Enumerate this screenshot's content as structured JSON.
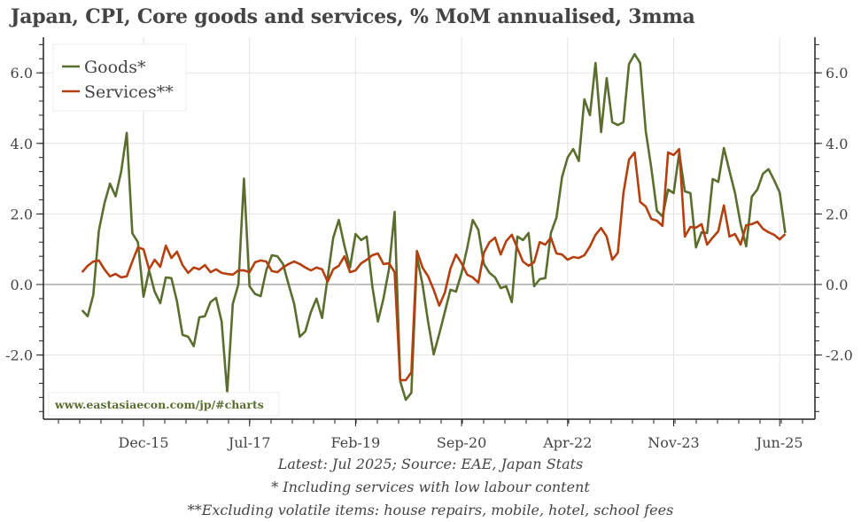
{
  "chart_data": {
    "type": "line",
    "title": "Japan, CPI, Core goods and services, % MoM annualised, 3mma",
    "xlabel": "",
    "ylabel": "",
    "ylim": [
      -3.9,
      7.0
    ],
    "yticks": [
      "-2.0",
      "0.0",
      "2.0",
      "4.0",
      "6.0"
    ],
    "ytick_values": [
      -2,
      0,
      2,
      4,
      6
    ],
    "xticks": [
      "Dec-15",
      "Jul-17",
      "Feb-19",
      "Sep-20",
      "Apr-22",
      "Nov-23",
      "Jun-25"
    ],
    "grid": true,
    "legend_position": "top-left",
    "x_start": "Jan-15",
    "x_end": "Jul-25",
    "series": [
      {
        "name": "Goods*",
        "color": "#5a6e2e",
        "values": [
          -0.73,
          -0.9,
          -0.3,
          1.53,
          2.3,
          2.86,
          2.5,
          3.2,
          4.3,
          1.45,
          1.2,
          -0.35,
          0.4,
          -0.2,
          -0.53,
          0.2,
          0.18,
          -0.48,
          -1.43,
          -1.48,
          -1.75,
          -0.93,
          -0.9,
          -0.5,
          -0.38,
          -1.05,
          -3.07,
          -0.55,
          0.0,
          3.0,
          -0.05,
          -0.27,
          -0.33,
          0.4,
          0.83,
          0.8,
          0.58,
          0.0,
          -0.55,
          -1.48,
          -1.33,
          -0.78,
          -0.4,
          -0.95,
          0.2,
          1.33,
          1.83,
          1.1,
          0.48,
          1.43,
          1.26,
          1.36,
          -0.05,
          -1.05,
          -0.4,
          0.45,
          2.06,
          -2.74,
          -3.27,
          -3.07,
          0.78,
          0.0,
          -1.06,
          -1.98,
          -1.4,
          -0.78,
          -0.15,
          -0.2,
          0.33,
          1.03,
          1.83,
          1.55,
          0.58,
          0.33,
          0.2,
          -0.1,
          -0.05,
          -0.5,
          1.36,
          1.26,
          1.46,
          -0.05,
          0.15,
          0.18,
          1.46,
          1.9,
          3.04,
          3.6,
          3.84,
          3.5,
          5.25,
          4.8,
          6.28,
          4.32,
          5.85,
          4.6,
          4.52,
          4.6,
          6.25,
          6.53,
          6.28,
          4.35,
          3.3,
          2.09,
          1.93,
          2.69,
          2.59,
          3.74,
          2.64,
          2.59,
          1.05,
          1.48,
          1.46,
          2.99,
          2.91,
          3.87,
          3.22,
          2.59,
          1.71,
          1.08,
          2.49,
          2.69,
          3.14,
          3.27,
          2.96,
          2.61,
          1.46
        ]
      },
      {
        "name": "Services**",
        "color": "#b5400f",
        "values": [
          0.35,
          0.53,
          0.65,
          0.68,
          0.43,
          0.23,
          0.3,
          0.2,
          0.23,
          0.65,
          1.05,
          1.0,
          0.43,
          0.7,
          0.5,
          1.1,
          0.75,
          0.93,
          0.55,
          0.33,
          0.48,
          0.43,
          0.55,
          0.35,
          0.43,
          0.33,
          0.3,
          0.28,
          0.4,
          0.4,
          0.35,
          0.63,
          0.68,
          0.65,
          0.38,
          0.35,
          0.48,
          0.58,
          0.65,
          0.58,
          0.48,
          0.4,
          0.48,
          0.43,
          0.08,
          0.43,
          0.53,
          0.8,
          0.35,
          0.4,
          0.6,
          0.7,
          0.83,
          0.88,
          0.58,
          0.6,
          0.35,
          -2.71,
          -2.71,
          -2.49,
          0.95,
          0.48,
          0.23,
          -0.15,
          -0.6,
          -0.23,
          0.45,
          0.85,
          0.6,
          0.28,
          0.2,
          0.05,
          0.9,
          1.2,
          1.33,
          0.85,
          1.23,
          1.41,
          1.03,
          0.65,
          0.53,
          0.63,
          1.2,
          1.13,
          1.33,
          0.88,
          0.85,
          0.7,
          0.78,
          0.75,
          0.83,
          1.08,
          1.41,
          1.6,
          1.36,
          0.7,
          0.9,
          2.59,
          3.54,
          3.74,
          2.34,
          2.21,
          1.86,
          1.81,
          1.66,
          3.74,
          3.67,
          3.84,
          1.36,
          1.63,
          1.61,
          1.71,
          1.13,
          1.33,
          1.51,
          2.24,
          1.36,
          1.43,
          1.13,
          1.68,
          1.71,
          1.78,
          1.58,
          1.48,
          1.41,
          1.28,
          1.43
        ]
      }
    ]
  },
  "watermark": "www.eastasiaecon.com/jp/#charts",
  "footnotes": {
    "source": "Latest: Jul 2025; Source: EAE, Japan Stats",
    "note1": "* Including services with low labour content",
    "note2": "**Excluding volatile items: house repairs, mobile, hotel, school fees"
  }
}
